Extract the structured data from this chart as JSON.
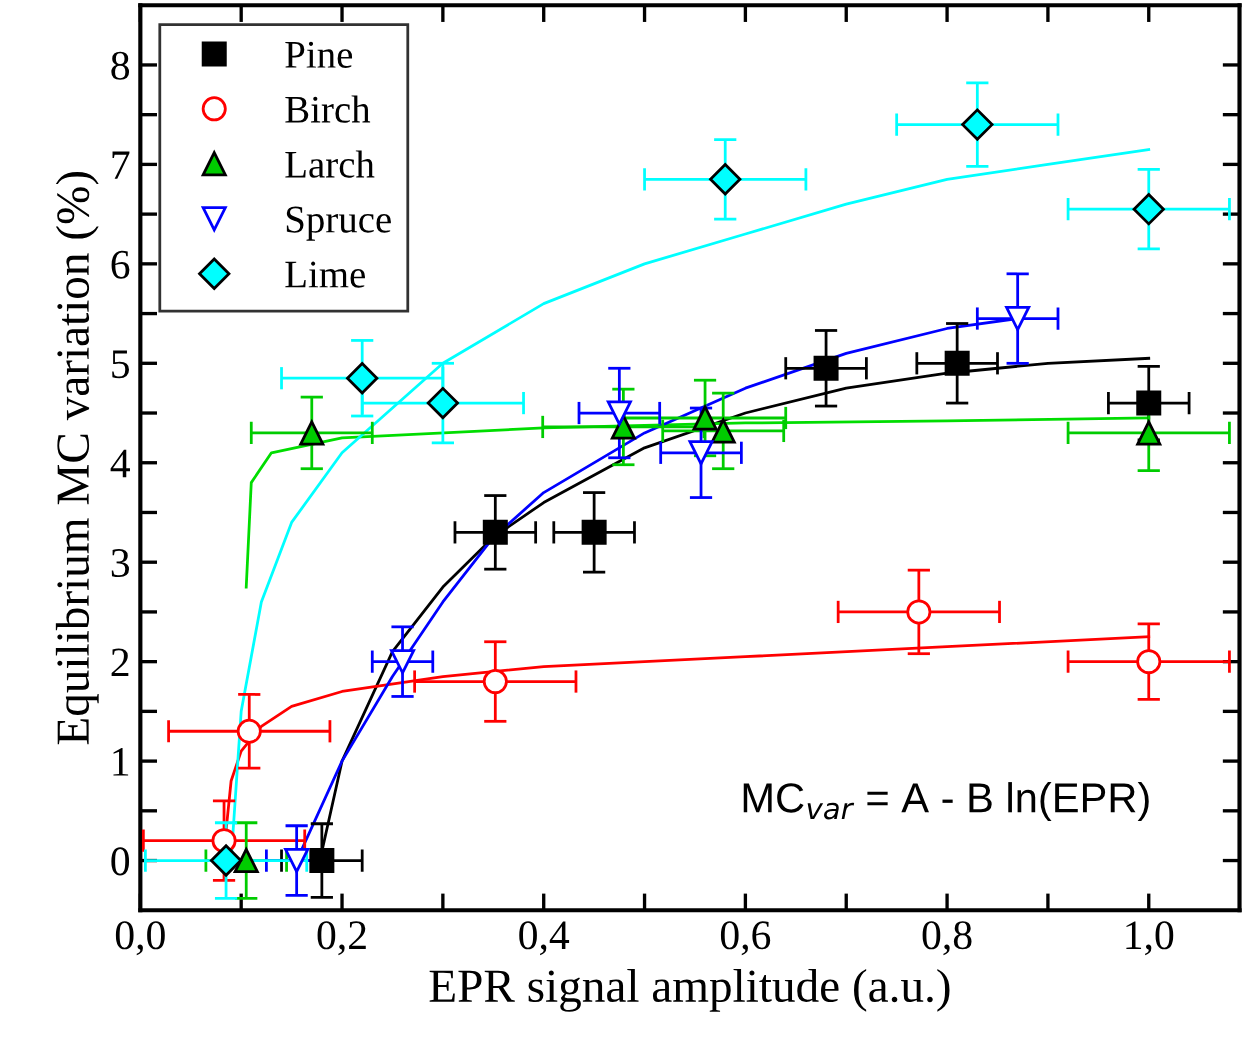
{
  "chart_data": {
    "type": "scatter",
    "xlabel": "EPR signal amplitude (a.u.)",
    "ylabel": "Equilibrium MC variation (%)",
    "xlim": [
      0,
      1.09
    ],
    "ylim": [
      -0.5,
      8.6
    ],
    "xticks": [
      {
        "value": 0,
        "label": "0,0"
      },
      {
        "value": 0.1,
        "label": null
      },
      {
        "value": 0.2,
        "label": "0,2"
      },
      {
        "value": 0.3,
        "label": null
      },
      {
        "value": 0.4,
        "label": "0,4"
      },
      {
        "value": 0.5,
        "label": null
      },
      {
        "value": 0.6,
        "label": "0,6"
      },
      {
        "value": 0.7,
        "label": null
      },
      {
        "value": 0.8,
        "label": "0,8"
      },
      {
        "value": 0.9,
        "label": null
      },
      {
        "value": 1.0,
        "label": "1,0"
      }
    ],
    "yticks": [
      0,
      {
        "value": 0.5,
        "label": null
      },
      1,
      {
        "value": 1.5,
        "label": null
      },
      2,
      {
        "value": 2.5,
        "label": null
      },
      3,
      {
        "value": 3.5,
        "label": null
      },
      4,
      {
        "value": 4.5,
        "label": null
      },
      5,
      {
        "value": 5.5,
        "label": null
      },
      6,
      {
        "value": 6.5,
        "label": null
      },
      7,
      {
        "value": 7.5,
        "label": null
      },
      8
    ],
    "legend": "top left",
    "grid": false,
    "annotations": [
      "MC$_{var}$ = A - B ln(EPR)"
    ],
    "series": [
      {
        "name": "Pine",
        "color": "#000000",
        "marker": "square",
        "x": [
          0.18,
          0.352,
          0.45,
          0.68,
          0.81,
          1.0
        ],
        "values": [
          0,
          3.3,
          3.3,
          4.95,
          5.0,
          4.6
        ],
        "errors": [
          0.37,
          0.37,
          0.4,
          0.38,
          0.4,
          0.37
        ],
        "xerrors": [
          0.04,
          0.04,
          0.04,
          0.04,
          0.04,
          0.04
        ]
      },
      {
        "name": "Birch",
        "color": "#ff0000",
        "marker": "circle-open",
        "x": [
          0.083,
          0.108,
          0.352,
          0.772,
          1.0
        ],
        "values": [
          0.2,
          1.3,
          1.8,
          2.5,
          2.0
        ],
        "errors": [
          0.4,
          0.37,
          0.4,
          0.42,
          0.38
        ],
        "xerrors": [
          0.08,
          0.08,
          0.08,
          0.08,
          0.08
        ]
      },
      {
        "name": "Larch",
        "color": "#00cc00",
        "marker": "triangle",
        "x": [
          0.105,
          0.17,
          0.479,
          0.56,
          0.578,
          1.0
        ],
        "values": [
          0,
          4.3,
          4.36,
          4.45,
          4.32,
          4.3
        ],
        "errors": [
          0.38,
          0.36,
          0.38,
          0.38,
          0.38,
          0.38
        ],
        "xerrors": [
          0.04,
          0.06,
          0.08,
          0.08,
          0.06,
          0.08
        ]
      },
      {
        "name": "Spruce",
        "color": "#0000ff",
        "marker": "triangle-down-open",
        "x": [
          0.155,
          0.26,
          0.475,
          0.556,
          0.87
        ],
        "values": [
          0,
          2.0,
          4.5,
          4.1,
          5.45
        ],
        "errors": [
          0.35,
          0.35,
          0.45,
          0.45,
          0.45
        ],
        "xerrors": [
          0.03,
          0.03,
          0.04,
          0.04,
          0.04
        ]
      },
      {
        "name": "Lime",
        "color": "#00ffff",
        "marker": "diamond",
        "x": [
          0.085,
          0.22,
          0.3,
          0.58,
          0.83,
          1.0
        ],
        "values": [
          0,
          4.85,
          4.6,
          6.85,
          7.4,
          6.55
        ],
        "errors": [
          0.38,
          0.38,
          0.4,
          0.4,
          0.42,
          0.4
        ],
        "xerrors": [
          0.08,
          0.08,
          0.08,
          0.08,
          0.08,
          0.08
        ]
      },
      {
        "type": "line",
        "color": "#000000",
        "x": [
          0.178,
          0.2,
          0.25,
          0.3,
          0.35,
          0.4,
          0.5,
          0.6,
          0.7,
          0.8,
          0.9,
          1.0
        ],
        "values": [
          0,
          1.0,
          2.1,
          2.75,
          3.25,
          3.6,
          4.15,
          4.5,
          4.75,
          4.9,
          5.0,
          5.05
        ]
      },
      {
        "type": "line",
        "color": "#ff0000",
        "x": [
          0.085,
          0.09,
          0.1,
          0.12,
          0.15,
          0.2,
          0.3,
          0.4,
          0.6,
          0.8,
          1.0
        ],
        "values": [
          0.3,
          0.8,
          1.1,
          1.35,
          1.55,
          1.7,
          1.85,
          1.95,
          2.05,
          2.15,
          2.25
        ]
      },
      {
        "type": "line",
        "color": "#00dd00",
        "x": [
          0.105,
          0.11,
          0.13,
          0.2,
          0.4,
          0.6,
          0.8,
          1.0
        ],
        "values": [
          2.75,
          3.8,
          4.1,
          4.25,
          4.35,
          4.4,
          4.42,
          4.45
        ]
      },
      {
        "type": "line",
        "color": "#0000ff",
        "x": [
          0.155,
          0.2,
          0.25,
          0.3,
          0.35,
          0.4,
          0.5,
          0.6,
          0.7,
          0.8,
          0.87
        ],
        "values": [
          0,
          1.0,
          1.85,
          2.6,
          3.25,
          3.7,
          4.3,
          4.75,
          5.1,
          5.35,
          5.45
        ]
      },
      {
        "type": "line",
        "color": "#00ffff",
        "x": [
          0.09,
          0.1,
          0.12,
          0.15,
          0.2,
          0.3,
          0.4,
          0.5,
          0.6,
          0.7,
          0.8,
          0.9,
          1.0
        ],
        "values": [
          0,
          1.5,
          2.6,
          3.4,
          4.1,
          5.0,
          5.6,
          6.0,
          6.3,
          6.6,
          6.85,
          7.0,
          7.15
        ]
      }
    ]
  }
}
